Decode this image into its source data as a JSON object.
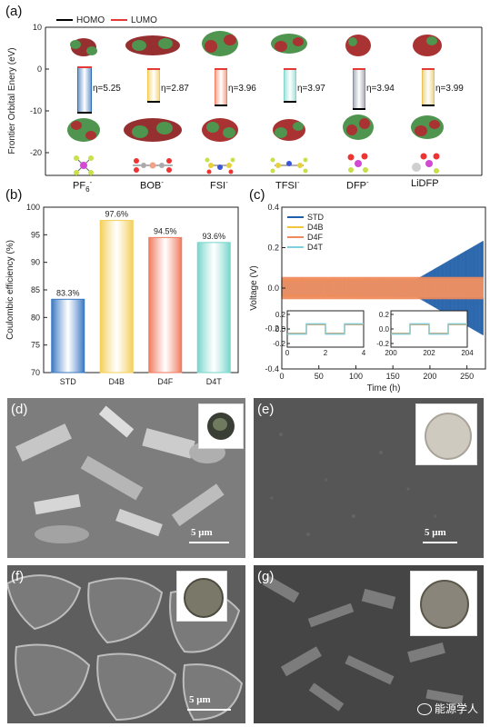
{
  "panel_a": {
    "label": "(a)",
    "legend": [
      "HOMO",
      "LUMO"
    ],
    "legend_colors": [
      "#000000",
      "#e53935"
    ],
    "ylabel": "Frontier Orbital Enery (eV)",
    "yticks": [
      "10",
      "0",
      "-10",
      "-20"
    ],
    "molecules": [
      {
        "name": "PF",
        "sub": "6",
        "sup": "-",
        "eta": "η=5.25",
        "color": "#2e6fb7"
      },
      {
        "name": "BOB",
        "sub": "",
        "sup": "-",
        "eta": "η=2.87",
        "color": "#f2c94c"
      },
      {
        "name": "FSI",
        "sub": "",
        "sup": "-",
        "eta": "η=3.96",
        "color": "#f08060"
      },
      {
        "name": "TFSI",
        "sub": "",
        "sup": "-",
        "eta": "η=3.97",
        "color": "#7fd6cc"
      },
      {
        "name": "DFP",
        "sub": "",
        "sup": "-",
        "eta": "η=3.94",
        "color": "#8a8d9b"
      },
      {
        "name": "LiDFP",
        "sub": "",
        "sup": "",
        "eta": "η=3.99",
        "color": "#e6c25a"
      }
    ]
  },
  "panel_b": {
    "label": "(b)",
    "chart_data": {
      "type": "bar",
      "categories": [
        "STD",
        "D4B",
        "D4F",
        "D4T"
      ],
      "values": [
        83.3,
        97.6,
        94.5,
        93.6
      ],
      "value_labels": [
        "83.3%",
        "97.6%",
        "94.5%",
        "93.6%"
      ],
      "colors": [
        "#3b78c2",
        "#f4cf5a",
        "#f07a5e",
        "#78d6cc"
      ],
      "ylabel": "Coulombic efficiency (%)",
      "ylim": [
        70,
        100
      ],
      "yticks": [
        "70",
        "75",
        "80",
        "85",
        "90",
        "95",
        "100"
      ]
    }
  },
  "panel_c": {
    "label": "(c)",
    "chart_data": {
      "type": "line",
      "xlabel": "Time (h)",
      "ylabel": "Voltage (V)",
      "xlim": [
        0,
        275
      ],
      "ylim": [
        -0.4,
        0.4
      ],
      "xticks": [
        "0",
        "50",
        "100",
        "150",
        "200",
        "250"
      ],
      "yticks": [
        "0.4",
        "0.2",
        "0.0",
        "-0.2",
        "-0.4"
      ],
      "series": [
        {
          "name": "STD",
          "color": "#1f5ea8"
        },
        {
          "name": "D4B",
          "color": "#f3c53a"
        },
        {
          "name": "D4F",
          "color": "#f08a5d"
        },
        {
          "name": "D4T",
          "color": "#7fd0e0"
        }
      ],
      "inset1": {
        "xticks": [
          "0",
          "2",
          "4"
        ],
        "yticks": [
          "0.2",
          "0.0",
          "-0.2"
        ]
      },
      "inset2": {
        "xticks": [
          "200",
          "202",
          "204"
        ],
        "yticks": [
          "0.2",
          "0.0",
          "-0.2"
        ]
      }
    }
  },
  "panel_d": {
    "label": "(d)",
    "scale": "5 μm"
  },
  "panel_e": {
    "label": "(e)",
    "scale": "5 μm"
  },
  "panel_f": {
    "label": "(f)",
    "scale": "5 μm"
  },
  "panel_g": {
    "label": "(g)"
  },
  "watermark": "能源学人"
}
